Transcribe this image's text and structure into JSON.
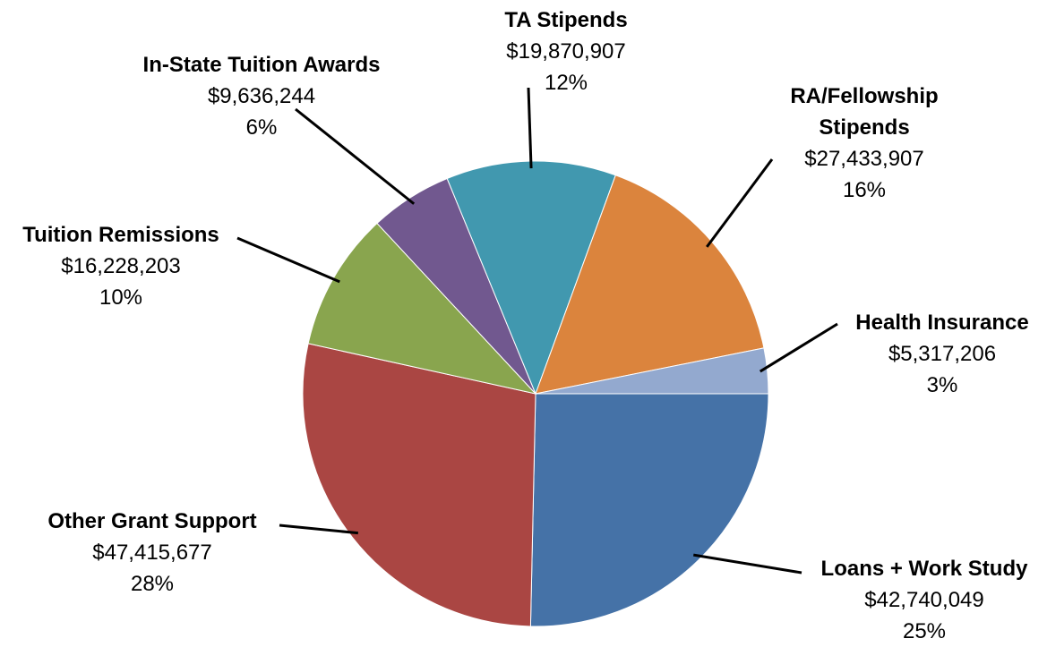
{
  "chart_data": {
    "type": "pie",
    "categories": [
      "Loans + Work Study",
      "Other Grant Support",
      "Tuition Remissions",
      "In-State Tuition Awards",
      "TA Stipends",
      "RA/Fellowship Stipends",
      "Health Insurance"
    ],
    "values": [
      42740049,
      47415677,
      16228203,
      9636244,
      19870907,
      27433907,
      5317206
    ],
    "value_labels": [
      "$42,740,049",
      "$47,415,677",
      "$16,228,203",
      "$9,636,244",
      "$19,870,907",
      "$27,433,907",
      "$5,317,206"
    ],
    "percent_labels": [
      "25%",
      "28%",
      "10%",
      "6%",
      "12%",
      "16%",
      "3%"
    ],
    "colors": [
      "#4572a7",
      "#aa4643",
      "#89a54e",
      "#71588f",
      "#4198af",
      "#db843d",
      "#93a9cf"
    ]
  }
}
